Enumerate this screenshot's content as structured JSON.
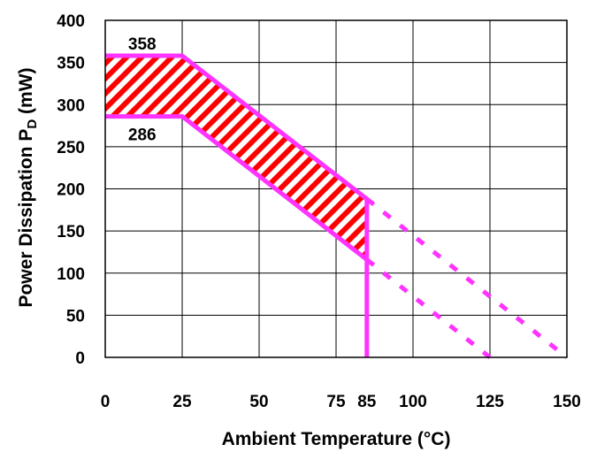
{
  "chart_data": {
    "type": "area",
    "title": "",
    "xlabel": "Ambient Temperature (°C)",
    "ylabel_main": "Power Dissipation P",
    "ylabel_subscript": "D",
    "ylabel_unit": " (mW)",
    "xlim": [
      0,
      150
    ],
    "ylim": [
      0,
      400
    ],
    "grid": true,
    "x_ticks": [
      0,
      25,
      50,
      75,
      85,
      100,
      125,
      150
    ],
    "x_tick_labels": [
      "0",
      "25",
      "50",
      "75",
      "85",
      "100",
      "125",
      "150"
    ],
    "y_ticks": [
      0,
      50,
      100,
      150,
      200,
      250,
      300,
      350,
      400
    ],
    "y_tick_labels": [
      "0",
      "50",
      "100",
      "150",
      "200",
      "250",
      "300",
      "350",
      "400"
    ],
    "x_gridlines": [
      25,
      50,
      75,
      100,
      125
    ],
    "series": [
      {
        "values_x": [
          0,
          25,
          85,
          85
        ],
        "values_y": [
          358,
          358,
          188,
          0
        ],
        "style": "solid",
        "color": "#ff33ff"
      },
      {
        "values_x": [
          0,
          25,
          85
        ],
        "values_y": [
          286,
          286,
          116
        ],
        "style": "solid",
        "color": "#ff33ff"
      },
      {
        "values_x": [
          85,
          150
        ],
        "values_y": [
          188,
          0
        ],
        "style": "dashed",
        "color": "#ff33ff"
      },
      {
        "values_x": [
          85,
          125
        ],
        "values_y": [
          116,
          0
        ],
        "style": "dashed",
        "color": "#ff33ff"
      }
    ],
    "hatched_region": {
      "upper_x": [
        0,
        25,
        85
      ],
      "upper_y": [
        358,
        358,
        188
      ],
      "lower_x": [
        0,
        25,
        85
      ],
      "lower_y": [
        286,
        286,
        116
      ],
      "color": "#ff0000"
    },
    "annotations": [
      {
        "text": "358",
        "x": 12,
        "y": 358
      },
      {
        "text": "286",
        "x": 12,
        "y": 286
      }
    ],
    "colors": {
      "grid": "#000000",
      "line": "#ff33ff",
      "hatch": "#ff0000"
    }
  }
}
